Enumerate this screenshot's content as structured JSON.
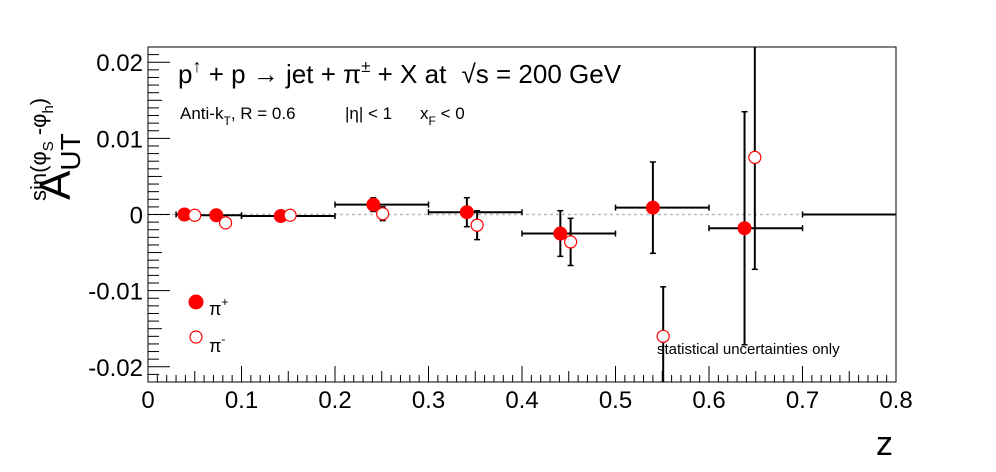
{
  "chart_data": {
    "type": "scatter",
    "title_parts": {
      "p": "p",
      "up": "↑",
      "plus_p": " + p ",
      "arrow": "→",
      "jet": " jet + π",
      "pm": "±",
      "rest": " + X at ",
      "sqrt": "√",
      "s_eq": "s = 200 GeV"
    },
    "subtitle_parts": {
      "antik": "Anti-k",
      "t_sub": "T",
      "r": ", R = 0.6",
      "eta": "|η| < 1",
      "xf": "x",
      "f_sub": "F",
      "xf_cond": " < 0"
    },
    "ylabel_parts": {
      "a": "A",
      "ut": "UT",
      "sin": "sin(φ",
      "s": "S",
      "mid": " -φ",
      "h": "h",
      "close": ")"
    },
    "xlabel": "z",
    "xlim": [
      0,
      0.8
    ],
    "ylim": [
      -0.022,
      0.022
    ],
    "xticks": [
      {
        "v": 0,
        "label": "0"
      },
      {
        "v": 0.1,
        "label": "0.1"
      },
      {
        "v": 0.2,
        "label": "0.2"
      },
      {
        "v": 0.3,
        "label": "0.3"
      },
      {
        "v": 0.4,
        "label": "0.4"
      },
      {
        "v": 0.5,
        "label": "0.5"
      },
      {
        "v": 0.6,
        "label": "0.6"
      },
      {
        "v": 0.7,
        "label": "0.7"
      },
      {
        "v": 0.8,
        "label": "0.8"
      }
    ],
    "yticks": [
      {
        "v": 0.02,
        "label": "0.02"
      },
      {
        "v": 0.01,
        "label": "0.01"
      },
      {
        "v": 0,
        "label": "0"
      },
      {
        "v": -0.01,
        "label": "-0.01"
      },
      {
        "v": -0.02,
        "label": "-0.02"
      }
    ],
    "bins": [
      {
        "lo": 0.03,
        "hi": 0.05
      },
      {
        "lo": 0.05,
        "hi": 0.1
      },
      {
        "lo": 0.1,
        "hi": 0.2
      },
      {
        "lo": 0.2,
        "hi": 0.3
      },
      {
        "lo": 0.3,
        "hi": 0.4
      },
      {
        "lo": 0.4,
        "hi": 0.5
      },
      {
        "lo": 0.5,
        "hi": 0.6
      },
      {
        "lo": 0.6,
        "hi": 0.7
      },
      {
        "lo": 0.7,
        "hi": 0.8
      }
    ],
    "series": [
      {
        "name": "π",
        "sup": "+",
        "filled": true,
        "color": "#ff0000",
        "points": [
          {
            "x": 0.039,
            "y": 0.0,
            "err": 0.0003
          },
          {
            "x": 0.073,
            "y": -0.0001,
            "err": 0.0003
          },
          {
            "x": 0.142,
            "y": -0.0002,
            "err": 0.0004
          },
          {
            "x": 0.241,
            "y": 0.0013,
            "err": 0.0009
          },
          {
            "x": 0.341,
            "y": 0.0003,
            "err": 0.0019
          },
          {
            "x": 0.441,
            "y": -0.0025,
            "err": 0.003
          },
          {
            "x": 0.54,
            "y": 0.0009,
            "err": 0.006
          },
          {
            "x": 0.638,
            "y": -0.0018,
            "err": 0.0153
          }
        ]
      },
      {
        "name": "π",
        "sup": "-",
        "filled": false,
        "color": "#ff0000",
        "points": [
          {
            "x": 0.05,
            "y": -0.0001,
            "err": 0.0004
          },
          {
            "x": 0.083,
            "y": -0.0011,
            "err": 0.0005
          },
          {
            "x": 0.152,
            "y": -0.0001,
            "err": 0.0004
          },
          {
            "x": 0.251,
            "y": 0.0001,
            "err": 0.0009
          },
          {
            "x": 0.352,
            "y": -0.0014,
            "err": 0.0019
          },
          {
            "x": 0.452,
            "y": -0.0036,
            "err": 0.0031
          },
          {
            "x": 0.551,
            "y": -0.016,
            "err": 0.0065
          },
          {
            "x": 0.649,
            "y": 0.0075,
            "err": 0.0147
          }
        ]
      }
    ],
    "zero_line": true,
    "annotation": "statistical uncertainties only",
    "annotation_color": "#ff0000"
  }
}
